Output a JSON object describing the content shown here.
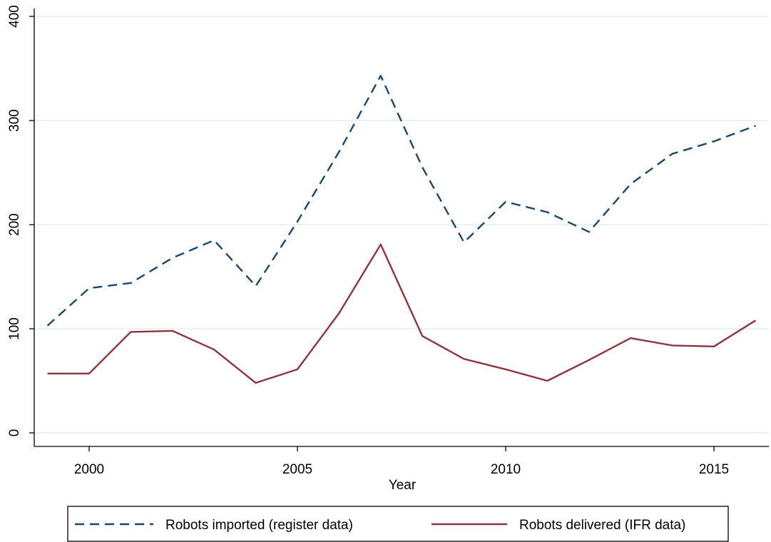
{
  "chart_data": {
    "type": "line",
    "title": "",
    "xlabel": "Year",
    "ylabel": "",
    "x": [
      1999,
      2000,
      2001,
      2002,
      2003,
      2004,
      2005,
      2006,
      2007,
      2008,
      2009,
      2010,
      2011,
      2012,
      2013,
      2014,
      2015,
      2016
    ],
    "xlim": [
      1998.56,
      2016.3
    ],
    "ylim": [
      0,
      400
    ],
    "xticks": [
      2000,
      2005,
      2010,
      2015
    ],
    "yticks": [
      0,
      100,
      200,
      300,
      400
    ],
    "grid": "horizontal",
    "legend_position": "bottom",
    "series": [
      {
        "name": "Robots imported (register data)",
        "color": "#1a476f",
        "dash": "dashed",
        "values": [
          103,
          139,
          144,
          168,
          185,
          141,
          203,
          270,
          343,
          255,
          183,
          222,
          212,
          193,
          239,
          268,
          280,
          295
        ]
      },
      {
        "name": "Robots delivered (IFR data)",
        "color": "#90353b",
        "dash": "solid",
        "values": [
          57,
          57,
          97,
          98,
          80,
          48,
          61,
          115,
          181,
          93,
          71,
          61,
          50,
          70,
          91,
          84,
          83,
          108
        ]
      }
    ]
  }
}
